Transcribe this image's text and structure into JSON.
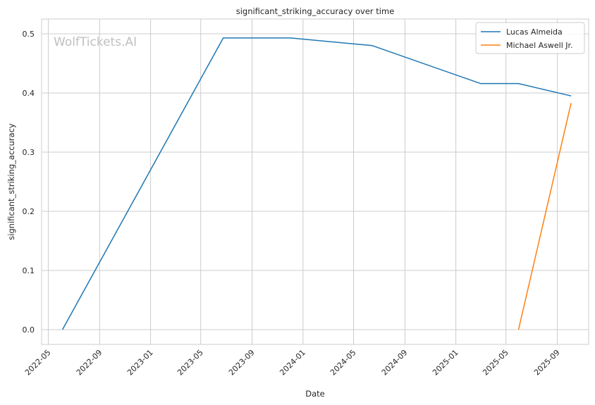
{
  "chart_data": {
    "type": "line",
    "title": "significant_striking_accuracy over time",
    "xlabel": "Date",
    "ylabel": "significant_striking_accuracy",
    "watermark": "WolfTickets.AI",
    "x_ticks": [
      "2022-05",
      "2022-09",
      "2023-01",
      "2023-05",
      "2023-09",
      "2024-01",
      "2024-05",
      "2024-09",
      "2025-01",
      "2025-05",
      "2025-09"
    ],
    "y_ticks": [
      "0.0",
      "0.1",
      "0.2",
      "0.3",
      "0.4",
      "0.5"
    ],
    "xlim": [
      "2022-04-15",
      "2025-11-15"
    ],
    "ylim": [
      -0.025,
      0.525
    ],
    "grid": true,
    "legend_position": "top-right",
    "series": [
      {
        "name": "Lucas Almeida",
        "color": "#1f77b4",
        "points": [
          {
            "x": "2022-06-04",
            "y": 0.0
          },
          {
            "x": "2023-06-24",
            "y": 0.493
          },
          {
            "x": "2023-12-02",
            "y": 0.493
          },
          {
            "x": "2024-06-15",
            "y": 0.48
          },
          {
            "x": "2025-03-01",
            "y": 0.416
          },
          {
            "x": "2025-05-31",
            "y": 0.416
          },
          {
            "x": "2025-10-04",
            "y": 0.395
          }
        ]
      },
      {
        "name": "Michael Aswell Jr.",
        "color": "#ff7f0e",
        "points": [
          {
            "x": "2025-05-31",
            "y": 0.0
          },
          {
            "x": "2025-10-04",
            "y": 0.383
          }
        ]
      }
    ]
  }
}
